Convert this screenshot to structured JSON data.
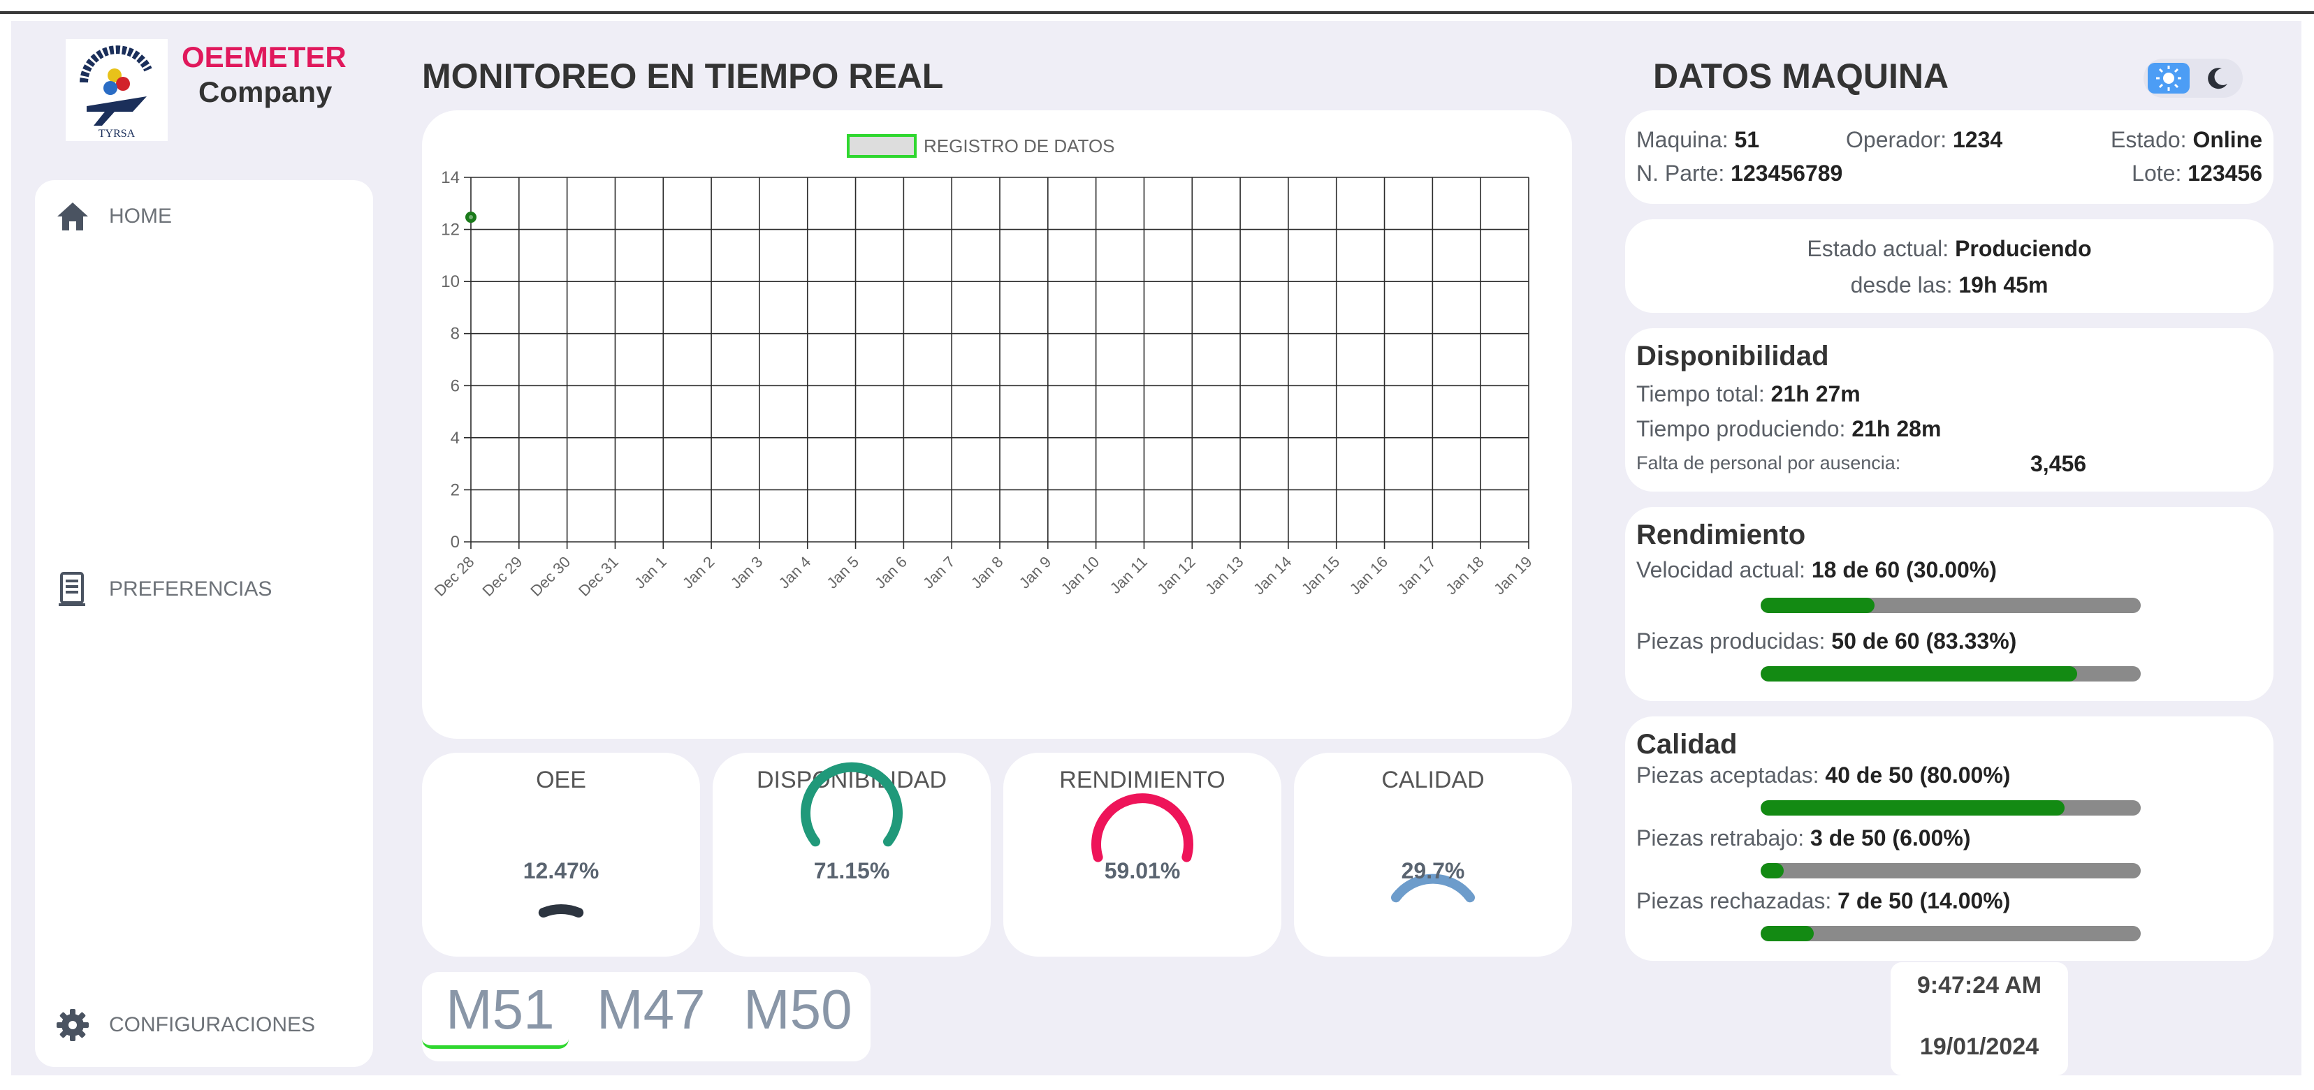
{
  "brand": {
    "name": "OEEMETER",
    "company": "Company",
    "logo_text": "TYRSA",
    "logo_icon": "tyrsa-logo"
  },
  "sidebar": {
    "items": [
      {
        "label": "HOME",
        "icon": "home-icon"
      },
      {
        "label": "PREFERENCIAS",
        "icon": "document-icon"
      },
      {
        "label": "CONFIGURACIONES",
        "icon": "gear-icon"
      }
    ]
  },
  "main": {
    "title": "MONITOREO EN TIEMPO REAL",
    "tabs": [
      {
        "label": "M51",
        "active": true
      },
      {
        "label": "M47",
        "active": false
      },
      {
        "label": "M50",
        "active": false
      }
    ]
  },
  "chart_data": {
    "type": "scatter",
    "legend": "REGISTRO DE DATOS",
    "legend_position": "top-center",
    "grid": true,
    "x_categories": [
      "Dec 28",
      "Dec 29",
      "Dec 30",
      "Dec 31",
      "Jan 1",
      "Jan 2",
      "Jan 3",
      "Jan 4",
      "Jan 5",
      "Jan 6",
      "Jan 7",
      "Jan 8",
      "Jan 9",
      "Jan 10",
      "Jan 11",
      "Jan 12",
      "Jan 13",
      "Jan 14",
      "Jan 15",
      "Jan 16",
      "Jan 17",
      "Jan 18",
      "Jan 19"
    ],
    "y_ticks": [
      0,
      2,
      4,
      6,
      8,
      10,
      12,
      14
    ],
    "ylim": [
      0,
      14
    ],
    "series": [
      {
        "points": [
          {
            "x": "Dec 28",
            "y": 12.47
          }
        ]
      }
    ],
    "colors": {
      "point": "#1a7a1a",
      "legend_fill": "#dddddd",
      "legend_border": "#2fd72f"
    }
  },
  "gauges": [
    {
      "title": "OEE",
      "value": 12.47,
      "label": "12.47%",
      "color": "#2d3540"
    },
    {
      "title": "DISPONIBILIDAD",
      "value": 71.15,
      "label": "71.15%",
      "color": "#20997a"
    },
    {
      "title": "RENDIMIENTO",
      "value": 59.01,
      "label": "59.01%",
      "color": "#ee1459"
    },
    {
      "title": "CALIDAD",
      "value": 29.7,
      "label": "29.7%",
      "color": "#6d9ccb"
    }
  ],
  "machine": {
    "title": "DATOS MAQUINA",
    "maquina_label": "Maquina:",
    "maquina": "51",
    "operador_label": "Operador:",
    "operador": "1234",
    "estado_label": "Estado:",
    "estado": "Online",
    "parte_label": "N. Parte:",
    "parte": "123456789",
    "lote_label": "Lote:",
    "lote": "123456"
  },
  "status": {
    "actual_label": "Estado actual:",
    "actual": "Produciendo",
    "desde_label": "desde las:",
    "desde": "19h 45m"
  },
  "disponibilidad": {
    "title": "Disponibilidad",
    "total_label": "Tiempo total:",
    "total": "21h 27m",
    "prod_label": "Tiempo produciendo:",
    "prod": "21h 28m",
    "falta_label": "Falta de personal por ausencia:",
    "falta": "3,456"
  },
  "rendimiento": {
    "title": "Rendimiento",
    "vel_label": "Velocidad actual:",
    "vel": "18 de 60 (30.00%)",
    "vel_fraction": 0.3,
    "piezas_label": "Piezas producidas:",
    "piezas": "50 de 60 (83.33%)",
    "piezas_fraction": 0.8333
  },
  "calidad": {
    "title": "Calidad",
    "acept_label": "Piezas aceptadas:",
    "acept": "40 de 50 (80.00%)",
    "acept_fraction": 0.8,
    "retra_label": "Piezas retrabajo:",
    "retra": "3 de 50 (6.00%)",
    "retra_fraction": 0.06,
    "rech_label": "Piezas rechazadas:",
    "rech": "7 de 50 (14.00%)",
    "rech_fraction": 0.14
  },
  "clock": {
    "time": "9:47:24 AM",
    "date": "19/01/2024"
  },
  "theme_toggle": {
    "light_icon": "sun-icon",
    "dark_icon": "moon-icon"
  }
}
